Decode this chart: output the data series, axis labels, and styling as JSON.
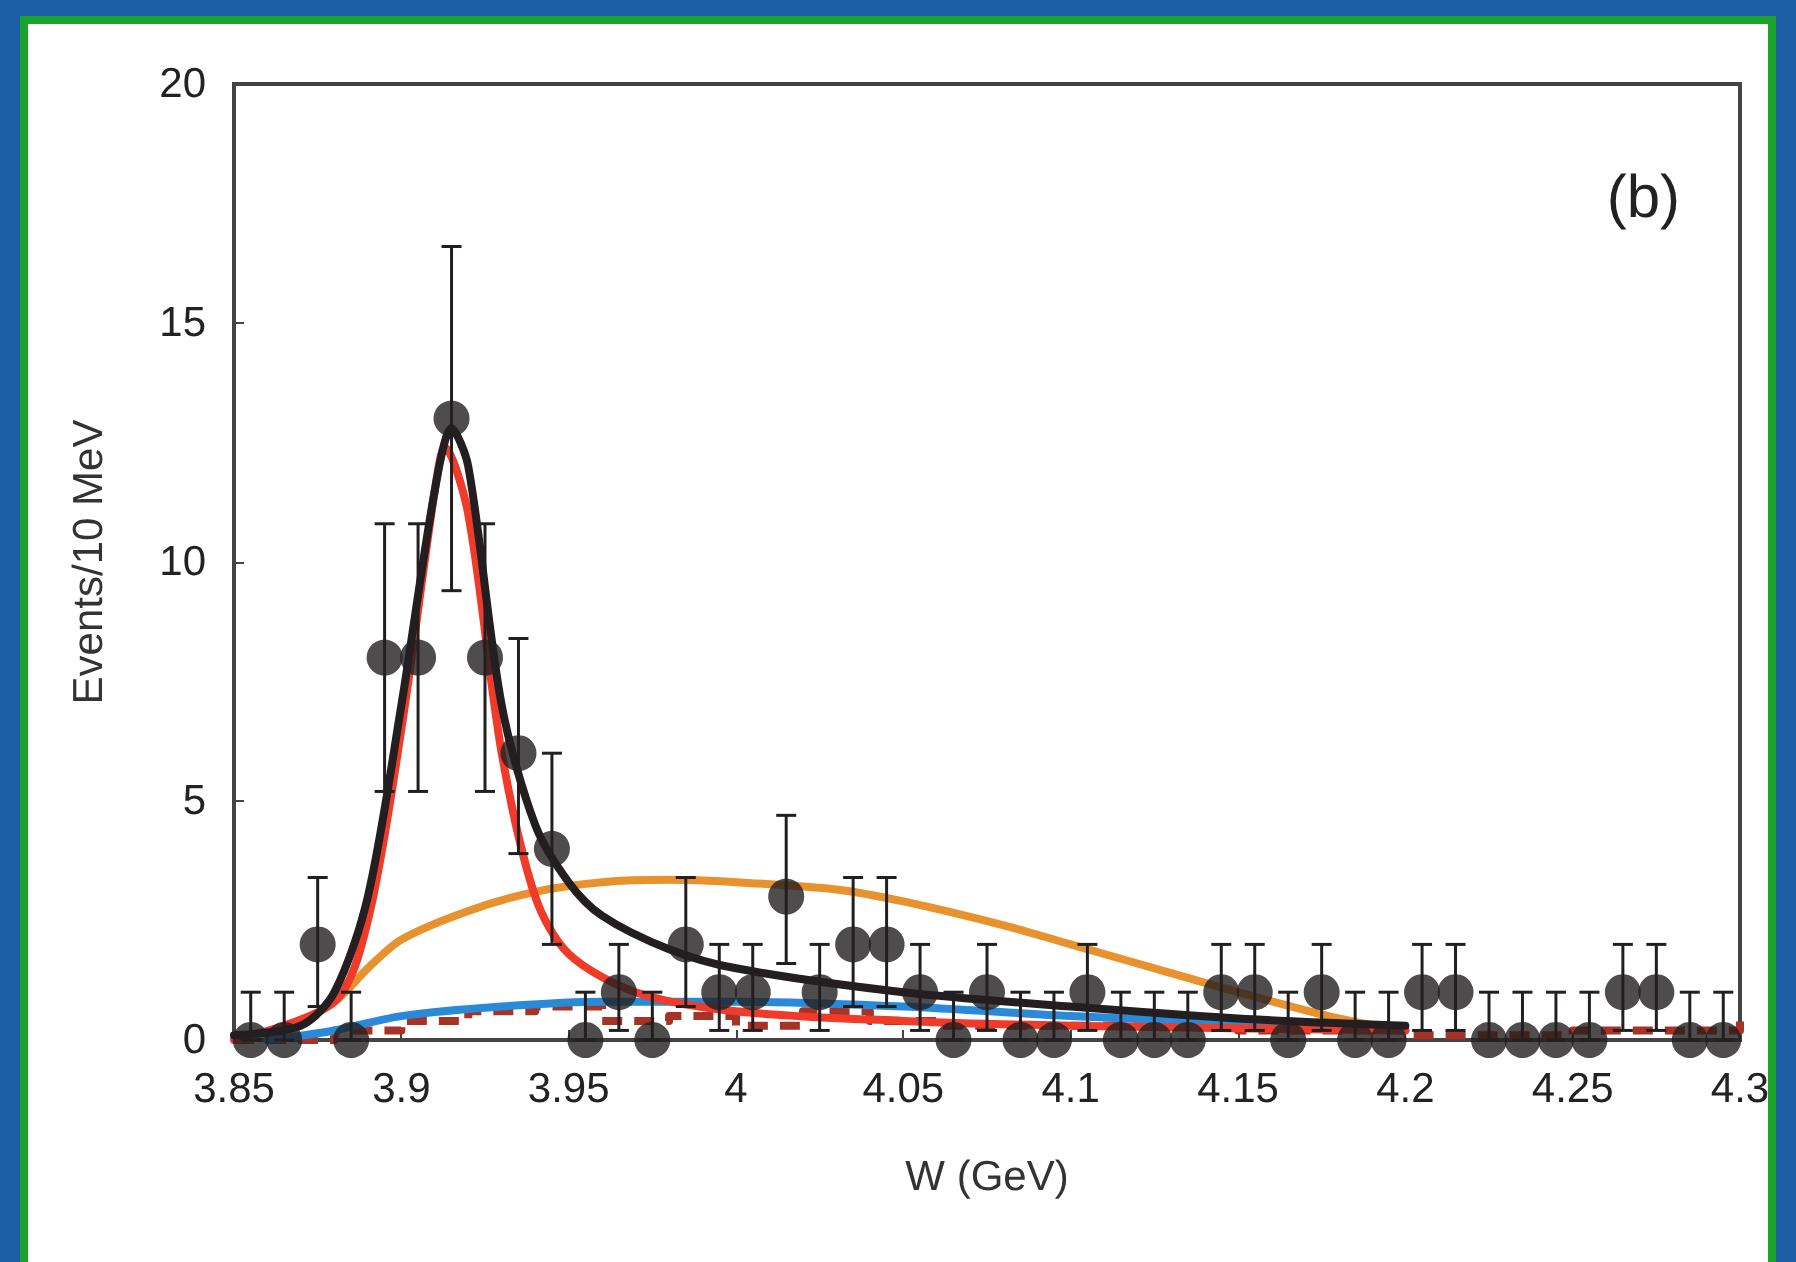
{
  "chart_data": {
    "type": "scatter",
    "xlabel": "W (GeV)",
    "ylabel": "Events/10 MeV",
    "annotations": [
      "(b)"
    ],
    "xlim": [
      3.85,
      4.3
    ],
    "xticks": [
      3.85,
      3.9,
      3.95,
      4,
      4.05,
      4.1,
      4.15,
      4.2,
      4.25,
      4.3
    ],
    "ylim": [
      0,
      20
    ],
    "yticks": [
      0,
      5,
      10,
      15,
      20
    ],
    "grid": false,
    "series": [
      {
        "type": "line",
        "color": "#e8922e",
        "marker": "none",
        "line_style": "solid",
        "x": [
          3.86,
          3.88,
          3.89,
          3.9,
          3.92,
          3.94,
          3.96,
          3.98,
          4.0,
          4.03,
          4.05,
          4.08,
          4.1,
          4.13,
          4.15,
          4.18,
          4.2
        ],
        "values": [
          0,
          0.8,
          1.5,
          2.1,
          2.7,
          3.1,
          3.3,
          3.35,
          3.3,
          3.15,
          2.9,
          2.4,
          2.0,
          1.4,
          1.0,
          0.45,
          0.2
        ]
      },
      {
        "type": "line",
        "color": "#2a8ad8",
        "marker": "none",
        "line_style": "solid",
        "x": [
          3.86,
          3.88,
          3.9,
          3.93,
          3.96,
          4.0,
          4.05,
          4.1,
          4.15,
          4.2
        ],
        "values": [
          0,
          0.2,
          0.5,
          0.7,
          0.8,
          0.8,
          0.7,
          0.5,
          0.35,
          0.2
        ]
      },
      {
        "type": "step",
        "color": "#a83226",
        "marker": "none",
        "line_style": "dashed",
        "x": [
          3.85,
          3.88,
          3.9,
          3.92,
          3.94,
          3.96,
          3.98,
          4.0,
          4.02,
          4.04,
          4.06,
          4.1,
          4.15,
          4.2,
          4.25,
          4.3
        ],
        "values": [
          0,
          0.2,
          0.4,
          0.6,
          0.7,
          0.4,
          0.5,
          0.3,
          0.6,
          0.4,
          0.3,
          0.3,
          0.2,
          0.1,
          0.2,
          0.4
        ]
      },
      {
        "type": "line",
        "color": "#f03a2a",
        "marker": "none",
        "line_style": "solid",
        "x": [
          3.85,
          3.88,
          3.89,
          3.9,
          3.91,
          3.913,
          3.92,
          3.93,
          3.94,
          3.95,
          3.97,
          4.0,
          4.05,
          4.1,
          4.2
        ],
        "values": [
          0,
          0.8,
          2.5,
          6.5,
          11.5,
          12.4,
          11,
          6,
          3,
          1.8,
          1.0,
          0.6,
          0.4,
          0.3,
          0.2
        ]
      },
      {
        "type": "line",
        "color": "#231f20",
        "marker": "none",
        "line_style": "solid",
        "x": [
          3.85,
          3.87,
          3.88,
          3.89,
          3.9,
          3.91,
          3.915,
          3.92,
          3.93,
          3.94,
          3.95,
          3.96,
          3.98,
          4.0,
          4.05,
          4.1,
          4.15,
          4.2
        ],
        "values": [
          0.1,
          0.3,
          1,
          3,
          7,
          11.5,
          12.8,
          12,
          7,
          4.5,
          3.3,
          2.6,
          1.9,
          1.5,
          1.0,
          0.7,
          0.45,
          0.3
        ]
      },
      {
        "color": "#231f20",
        "marker": "circle",
        "x": [
          3.855,
          3.865,
          3.875,
          3.885,
          3.895,
          3.905,
          3.915,
          3.925,
          3.935,
          3.945,
          3.955,
          3.965,
          3.975,
          3.985,
          3.995,
          4.005,
          4.015,
          4.025,
          4.035,
          4.045,
          4.055,
          4.065,
          4.075,
          4.085,
          4.095,
          4.105,
          4.115,
          4.125,
          4.135,
          4.145,
          4.155,
          4.165,
          4.175,
          4.185,
          4.195,
          4.205,
          4.215,
          4.225,
          4.235,
          4.245,
          4.255,
          4.265,
          4.275,
          4.285,
          4.295
        ],
        "values": [
          0,
          0,
          2,
          0,
          8,
          8,
          13,
          8,
          6,
          4,
          0,
          1,
          0,
          2,
          1,
          1,
          3,
          1,
          2,
          2,
          1,
          0,
          1,
          0,
          0,
          1,
          0,
          0,
          0,
          1,
          1,
          0,
          1,
          0,
          0,
          1,
          1,
          0,
          0,
          0,
          0,
          1,
          1,
          0,
          0
        ],
        "errors": [
          [
            0,
            1
          ],
          [
            0,
            1
          ],
          [
            0.7,
            3.4
          ],
          [
            0,
            1
          ],
          [
            5.2,
            10.8
          ],
          [
            5.2,
            10.8
          ],
          [
            9.4,
            16.6
          ],
          [
            5.2,
            10.8
          ],
          [
            3.9,
            8.4
          ],
          [
            2,
            6
          ],
          [
            0,
            1
          ],
          [
            0.2,
            2
          ],
          [
            0,
            1
          ],
          [
            0.7,
            3.4
          ],
          [
            0.2,
            2
          ],
          [
            0.2,
            2
          ],
          [
            1.6,
            4.7
          ],
          [
            0.2,
            2
          ],
          [
            0.7,
            3.4
          ],
          [
            0.7,
            3.4
          ],
          [
            0.2,
            2
          ],
          [
            0,
            1
          ],
          [
            0.2,
            2
          ],
          [
            0,
            1
          ],
          [
            0,
            1
          ],
          [
            0.2,
            2
          ],
          [
            0,
            1
          ],
          [
            0,
            1
          ],
          [
            0,
            1
          ],
          [
            0.2,
            2
          ],
          [
            0.2,
            2
          ],
          [
            0,
            1
          ],
          [
            0.2,
            2
          ],
          [
            0,
            1
          ],
          [
            0,
            1
          ],
          [
            0.2,
            2
          ],
          [
            0.2,
            2
          ],
          [
            0,
            1
          ],
          [
            0,
            1
          ],
          [
            0,
            1
          ],
          [
            0,
            1
          ],
          [
            0.2,
            2
          ],
          [
            0.2,
            2
          ],
          [
            0,
            1
          ],
          [
            0,
            1
          ]
        ]
      }
    ]
  }
}
